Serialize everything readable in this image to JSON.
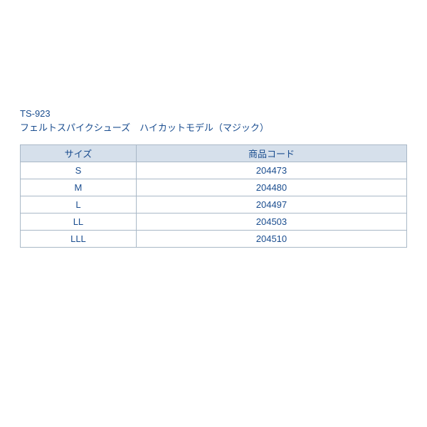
{
  "title": {
    "line1": "TS-923",
    "line2": "フェルトスパイクシューズ　ハイカットモデル（マジック）"
  },
  "table": {
    "columns": [
      "サイズ",
      "商品コード"
    ],
    "rows": [
      [
        "S",
        "204473"
      ],
      [
        "M",
        "204480"
      ],
      [
        "L",
        "204497"
      ],
      [
        "LL",
        "204503"
      ],
      [
        "LLL",
        "204510"
      ]
    ],
    "header_bg": "#d6e0eb",
    "border_color": "#a9b8c7",
    "text_color": "#1a4d8f",
    "col_widths": [
      "30%",
      "70%"
    ]
  },
  "background_color": "#ffffff"
}
